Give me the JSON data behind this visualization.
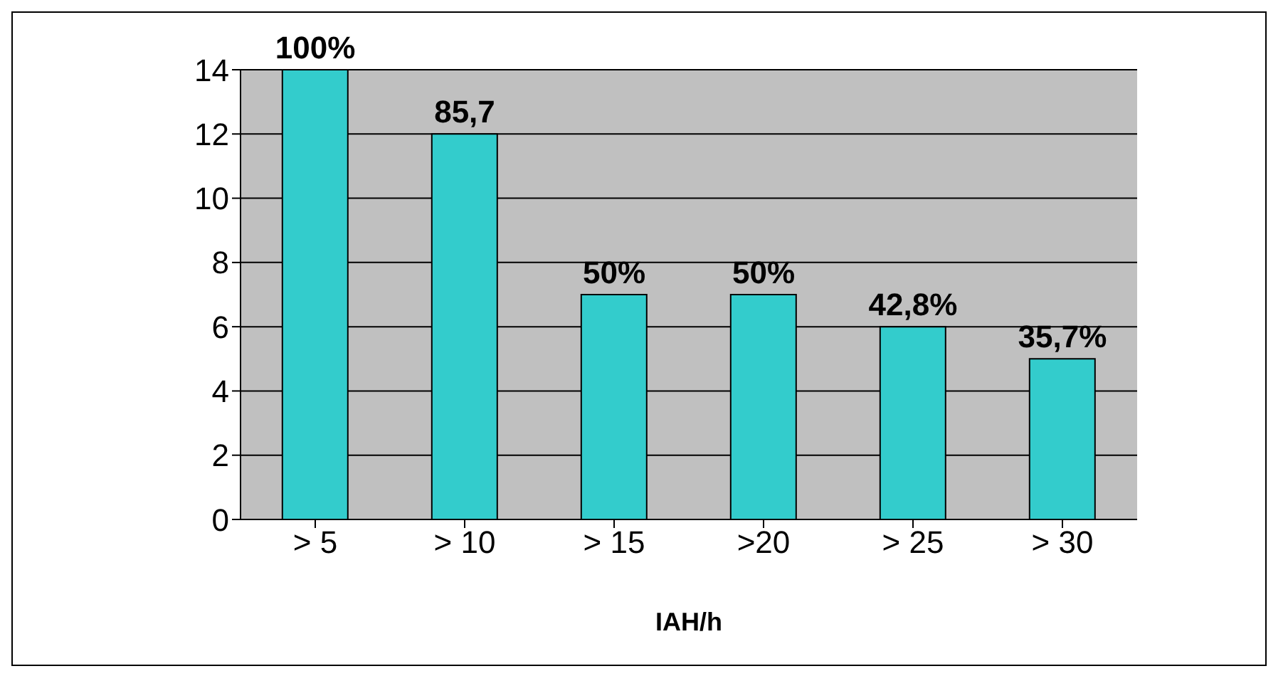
{
  "chart_data": {
    "type": "bar",
    "xlabel": "IAH/h",
    "categories": [
      "> 5",
      "> 10",
      "> 15",
      ">20",
      "> 25",
      "> 30"
    ],
    "values": [
      14,
      12,
      7,
      7,
      6,
      5
    ],
    "annotations": [
      {
        "text": "100%",
        "x": "> 5",
        "y": 14
      },
      {
        "text": "85,7",
        "x": "> 10",
        "y": 12
      },
      {
        "text": "50%",
        "x": "> 15",
        "y": 7
      },
      {
        "text": "50%",
        "x": ">20",
        "y": 7
      },
      {
        "text": "42,8%",
        "x": "> 25",
        "y": 6
      },
      {
        "text": "35,7%",
        "x": "> 30",
        "y": 5
      }
    ],
    "color": "#33cccc",
    "ylim": [
      0,
      14
    ],
    "yticks": [
      0,
      2,
      4,
      6,
      8,
      10,
      12,
      14
    ],
    "grid": "y"
  }
}
